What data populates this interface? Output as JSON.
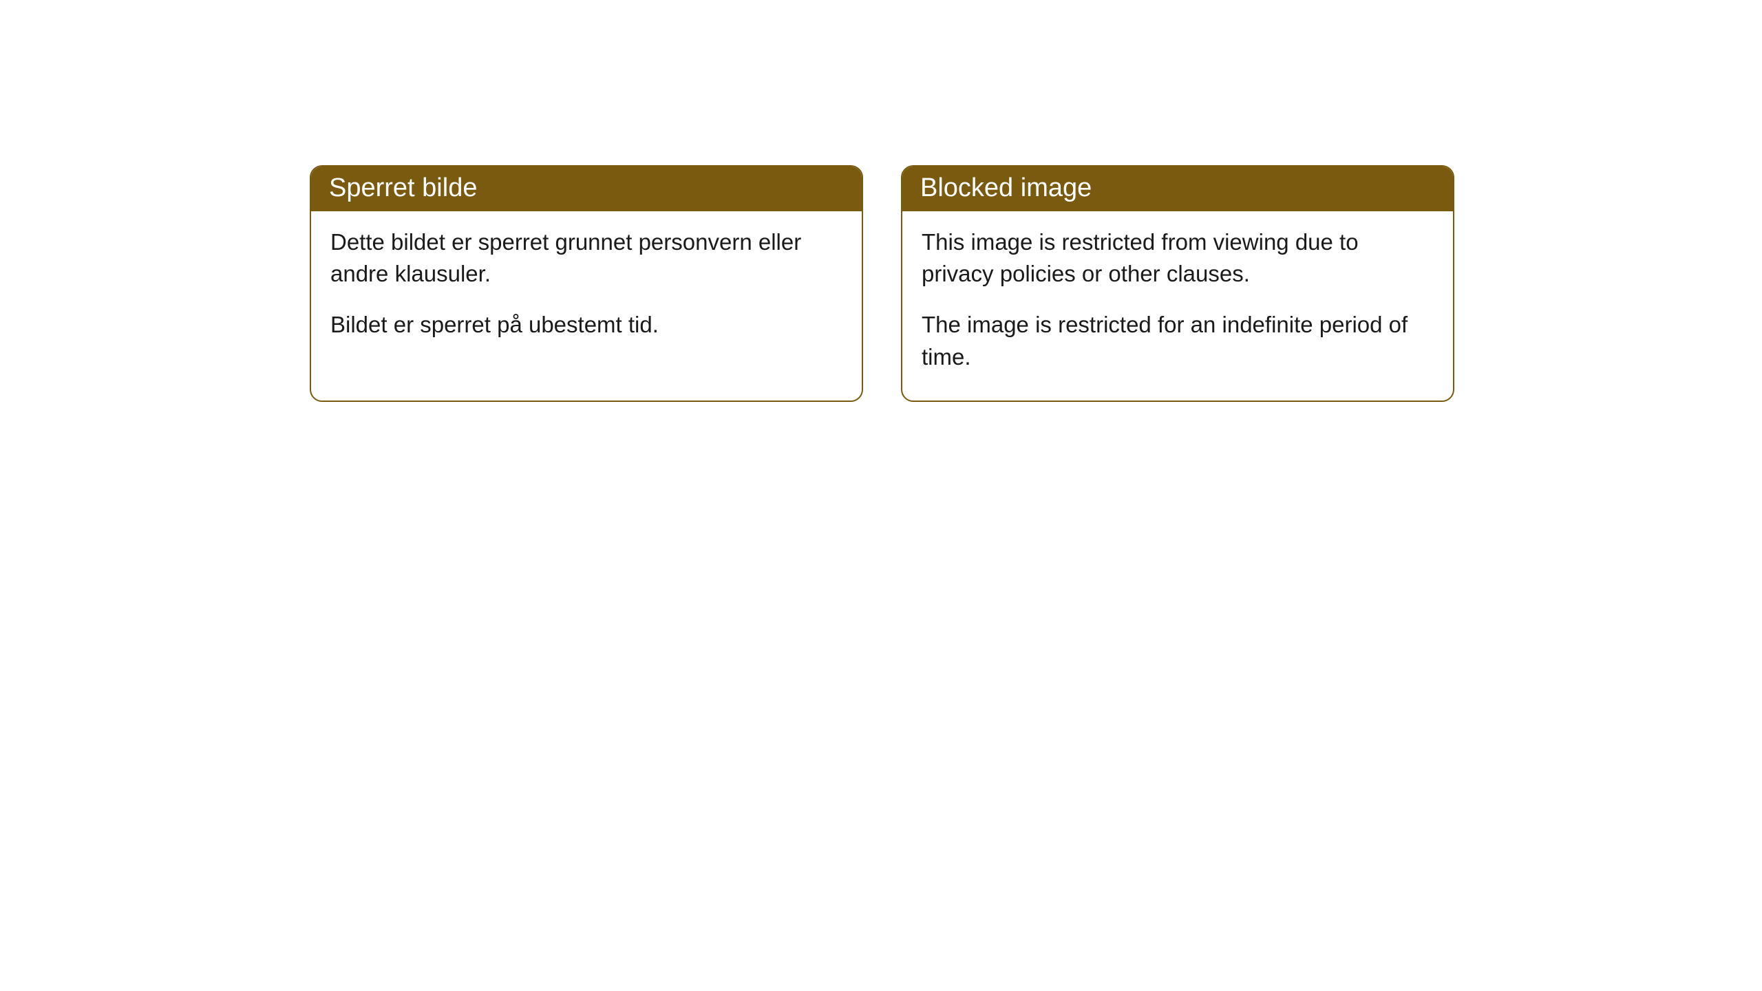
{
  "cards": {
    "left": {
      "title": "Sperret bilde",
      "paragraph1": "Dette bildet er sperret grunnet personvern eller andre klausuler.",
      "paragraph2": "Bildet er sperret på ubestemt tid."
    },
    "right": {
      "title": "Blocked image",
      "paragraph1": "This image is restricted from viewing due to privacy policies or other clauses.",
      "paragraph2": "The image is restricted for an indefinite period of time."
    }
  },
  "styling": {
    "header_background": "#7a5a0f",
    "header_text_color": "#ffffff",
    "border_color": "#7a5a0f",
    "body_text_color": "#1a1a1a",
    "card_background": "#ffffff",
    "page_background": "#ffffff",
    "border_radius": 18,
    "header_fontsize": 38,
    "body_fontsize": 33
  }
}
